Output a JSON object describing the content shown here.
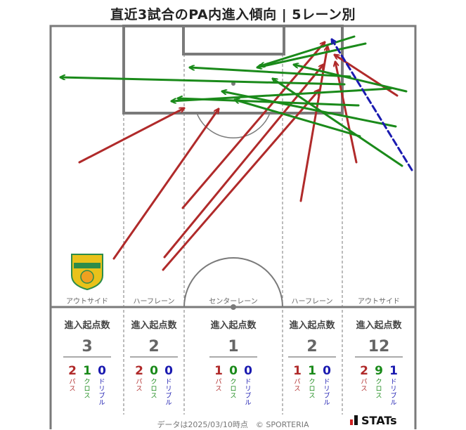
{
  "title": "直近3試合のPA内進入傾向 | 5レーン別",
  "lane_labels": [
    "アウトサイド",
    "ハーフレーン",
    "センターレーン",
    "ハーフレーン",
    "アウトサイド"
  ],
  "stat_header": "進入起点数",
  "colors": {
    "pass": "#b02a2a",
    "cross": "#1a8a1a",
    "dribble": "#1a1ab0"
  },
  "lanes": [
    {
      "total": "3",
      "pass": "2",
      "cross": "1",
      "dribble": "0"
    },
    {
      "total": "2",
      "pass": "2",
      "cross": "0",
      "dribble": "0"
    },
    {
      "total": "1",
      "pass": "1",
      "cross": "0",
      "dribble": "0"
    },
    {
      "total": "2",
      "pass": "1",
      "cross": "1",
      "dribble": "0"
    },
    {
      "total": "12",
      "pass": "2",
      "cross": "9",
      "dribble": "1"
    }
  ],
  "type_labels": {
    "pass": "パス",
    "cross": "クロス",
    "dribble": "ドリブル"
  },
  "footer": "データは2025/03/10時点　© SPORTERIA",
  "brand": "STATs",
  "chart_data": {
    "type": "arrow-map",
    "title": "直近3試合のPA内進入傾向 | 5レーン別",
    "arrows": [
      {
        "kind": "pass",
        "from": [
          113,
          231
        ],
        "to": [
          262,
          154
        ]
      },
      {
        "kind": "pass",
        "from": [
          162,
          368
        ],
        "to": [
          311,
          155
        ]
      },
      {
        "kind": "pass",
        "from": [
          260,
          296
        ],
        "to": [
          462,
          60
        ]
      },
      {
        "kind": "pass",
        "from": [
          234,
          366
        ],
        "to": [
          460,
          92
        ]
      },
      {
        "kind": "pass",
        "from": [
          232,
          384
        ],
        "to": [
          454,
          128
        ]
      },
      {
        "kind": "pass",
        "from": [
          428,
          286
        ],
        "to": [
          466,
          66
        ]
      },
      {
        "kind": "pass",
        "from": [
          507,
          231
        ],
        "to": [
          477,
          88
        ]
      },
      {
        "kind": "pass",
        "from": [
          565,
          136
        ],
        "to": [
          476,
          78
        ]
      },
      {
        "kind": "cross",
        "from": [
          504,
          52
        ],
        "to": [
          370,
          94
        ]
      },
      {
        "kind": "cross",
        "from": [
          520,
          62
        ],
        "to": [
          366,
          96
        ]
      },
      {
        "kind": "cross",
        "from": [
          490,
          120
        ],
        "to": [
          86,
          110
        ]
      },
      {
        "kind": "cross",
        "from": [
          498,
          109
        ],
        "to": [
          270,
          96
        ]
      },
      {
        "kind": "cross",
        "from": [
          578,
          130
        ],
        "to": [
          418,
          92
        ]
      },
      {
        "kind": "cross",
        "from": [
          556,
          126
        ],
        "to": [
          244,
          144
        ]
      },
      {
        "kind": "cross",
        "from": [
          510,
          150
        ],
        "to": [
          253,
          140
        ]
      },
      {
        "kind": "cross",
        "from": [
          563,
          180
        ],
        "to": [
          316,
          130
        ]
      },
      {
        "kind": "cross",
        "from": [
          512,
          194
        ],
        "to": [
          334,
          142
        ]
      },
      {
        "kind": "cross",
        "from": [
          572,
          236
        ],
        "to": [
          388,
          112
        ]
      },
      {
        "kind": "dribble",
        "from": [
          586,
          242
        ],
        "to": [
          472,
          56
        ]
      }
    ]
  }
}
